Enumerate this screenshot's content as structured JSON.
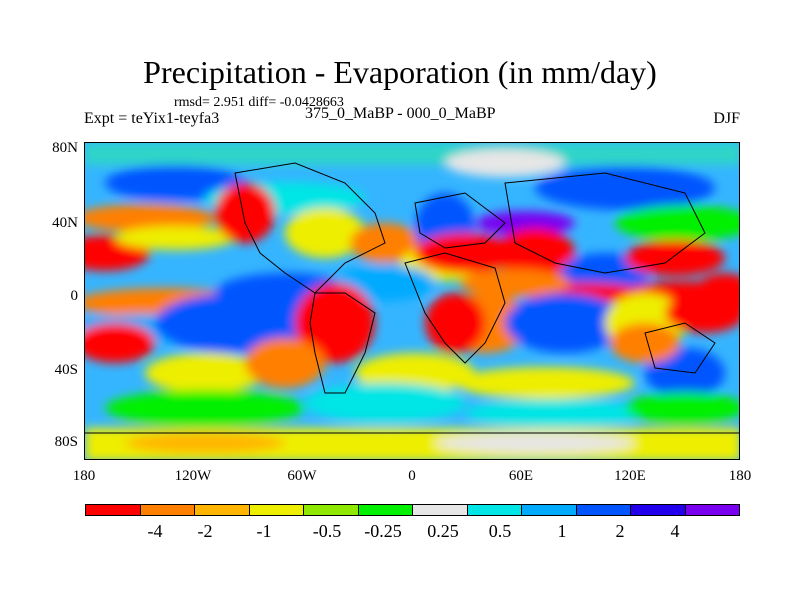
{
  "title": "Precipitation - Evaporation (in mm/day)",
  "stats": "rmsd= 2.951 diff= -0.0428663",
  "experiment": "Expt = teYix1-teyfa3",
  "difference_label": "375_0_MaBP - 000_0_MaBP",
  "season": "DJF",
  "y_ticks": [
    "80N",
    "40N",
    "0",
    "40S",
    "80S"
  ],
  "x_ticks": [
    "180",
    "120W",
    "60W",
    "0",
    "60E",
    "120E",
    "180"
  ],
  "colorbar": {
    "colors": [
      "#ff0000",
      "#ff7f00",
      "#ffb500",
      "#eeee00",
      "#8fe800",
      "#00f000",
      "#e6e6e6",
      "#00e5e5",
      "#00aaff",
      "#0055ff",
      "#2200ee",
      "#7a00f0"
    ],
    "labels": [
      "-4",
      "-2",
      "-1",
      "-0.5",
      "-0.25",
      "0.25",
      "0.5",
      "1",
      "2",
      "4"
    ]
  }
}
